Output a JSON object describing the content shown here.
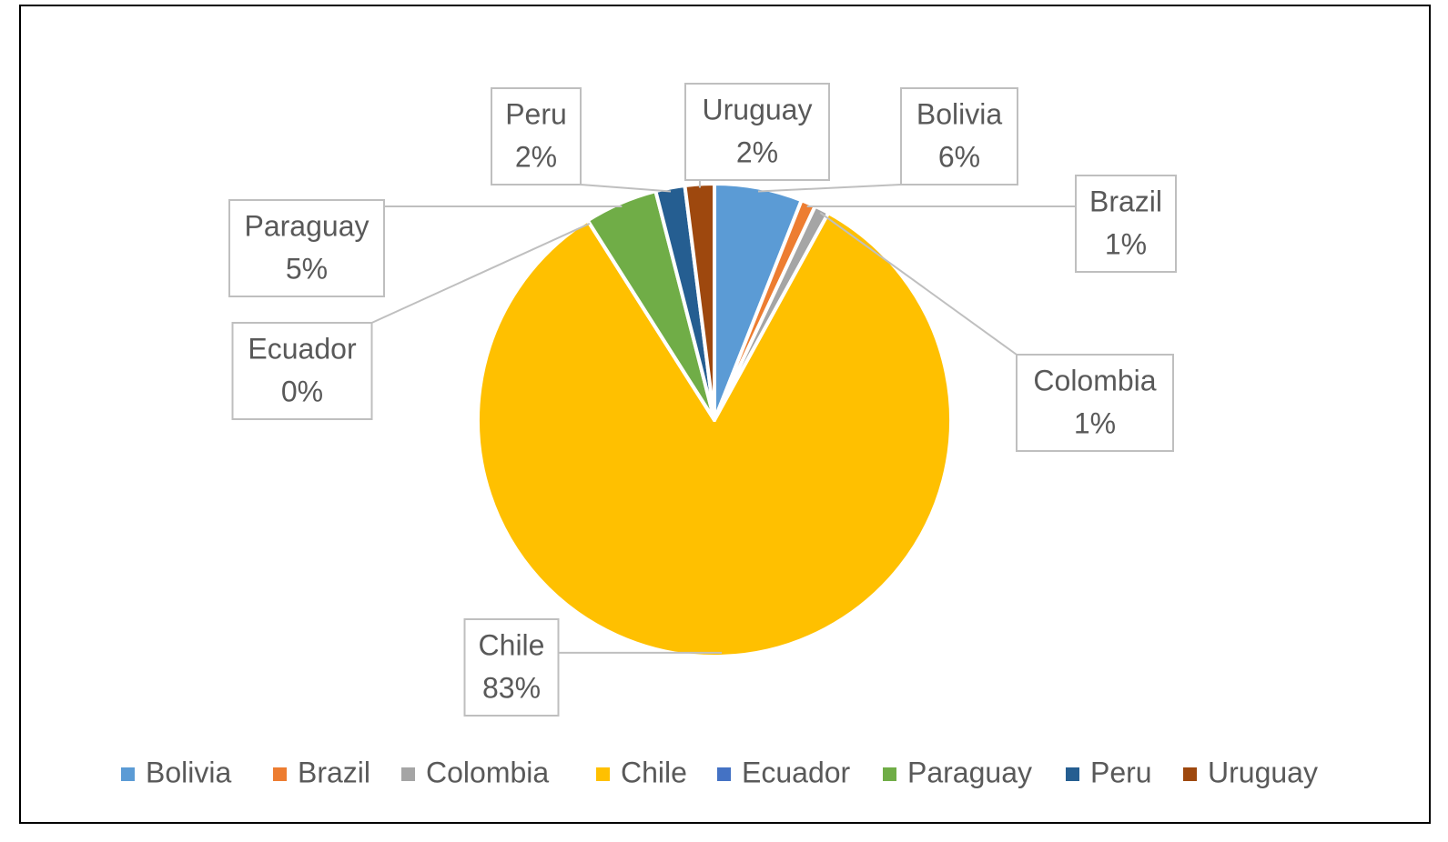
{
  "chart_data": {
    "type": "pie",
    "categories": [
      "Bolivia",
      "Brazil",
      "Colombia",
      "Chile",
      "Ecuador",
      "Paraguay",
      "Peru",
      "Uruguay"
    ],
    "values": [
      6,
      1,
      1,
      83,
      0,
      5,
      2,
      2
    ],
    "value_labels": [
      "6%",
      "1%",
      "1%",
      "83%",
      "0%",
      "5%",
      "2%",
      "2%"
    ],
    "colors": [
      "#5b9bd5",
      "#ed7d31",
      "#a5a5a5",
      "#ffc000",
      "#4472c4",
      "#70ad47",
      "#255e91",
      "#9e480e"
    ],
    "legend": "bottom"
  }
}
